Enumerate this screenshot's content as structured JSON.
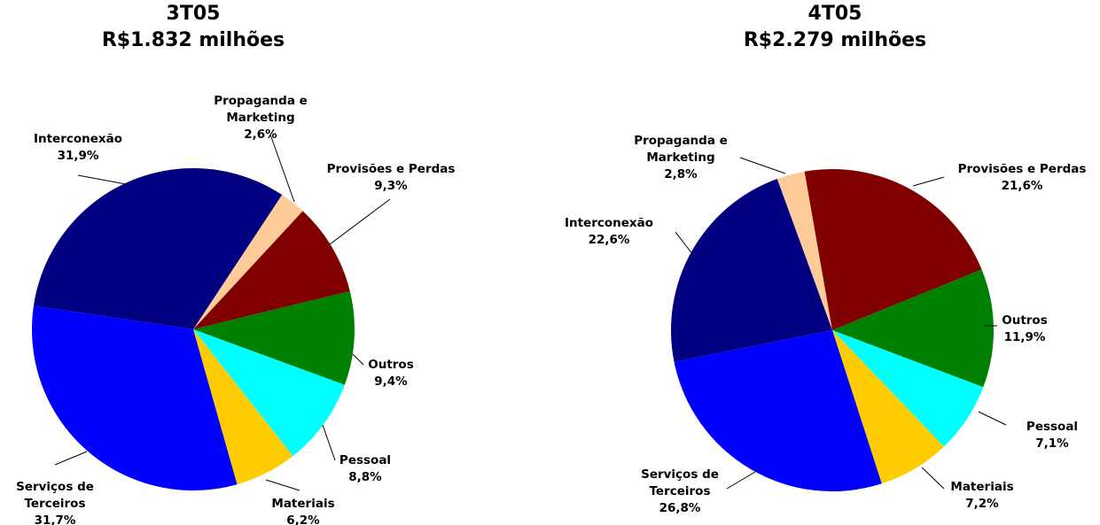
{
  "chart_data": [
    {
      "type": "pie",
      "title": "3T05",
      "subtitle": "R$1.832 milhões",
      "categories": [
        "Propaganda e Marketing",
        "Provisões e Perdas",
        "Outros",
        "Pessoal",
        "Materiais",
        "Serviços de Terceiros",
        "Interconexão"
      ],
      "values": [
        2.6,
        9.3,
        9.4,
        8.8,
        6.2,
        31.7,
        31.9
      ],
      "value_labels": [
        "2,6%",
        "9,3%",
        "9,4%",
        "8,8%",
        "6,2%",
        "31,7%",
        "31,9%"
      ],
      "colors": [
        "#ffcc99",
        "#800000",
        "#008000",
        "#00ffff",
        "#ffcc00",
        "#0000ff",
        "#000080"
      ]
    },
    {
      "type": "pie",
      "title": "4T05",
      "subtitle": "R$2.279 milhões",
      "categories": [
        "Propaganda e Marketing",
        "Provisões e Perdas",
        "Outros",
        "Pessoal",
        "Materiais",
        "Serviços de Terceiros",
        "Interconexão"
      ],
      "values": [
        2.8,
        21.6,
        11.9,
        7.1,
        7.2,
        26.8,
        22.6
      ],
      "value_labels": [
        "2,8%",
        "21,6%",
        "11,9%",
        "7,1%",
        "7,2%",
        "26,8%",
        "22,6%"
      ],
      "colors": [
        "#ffcc99",
        "#800000",
        "#008000",
        "#00ffff",
        "#ffcc00",
        "#0000ff",
        "#000080"
      ]
    }
  ]
}
